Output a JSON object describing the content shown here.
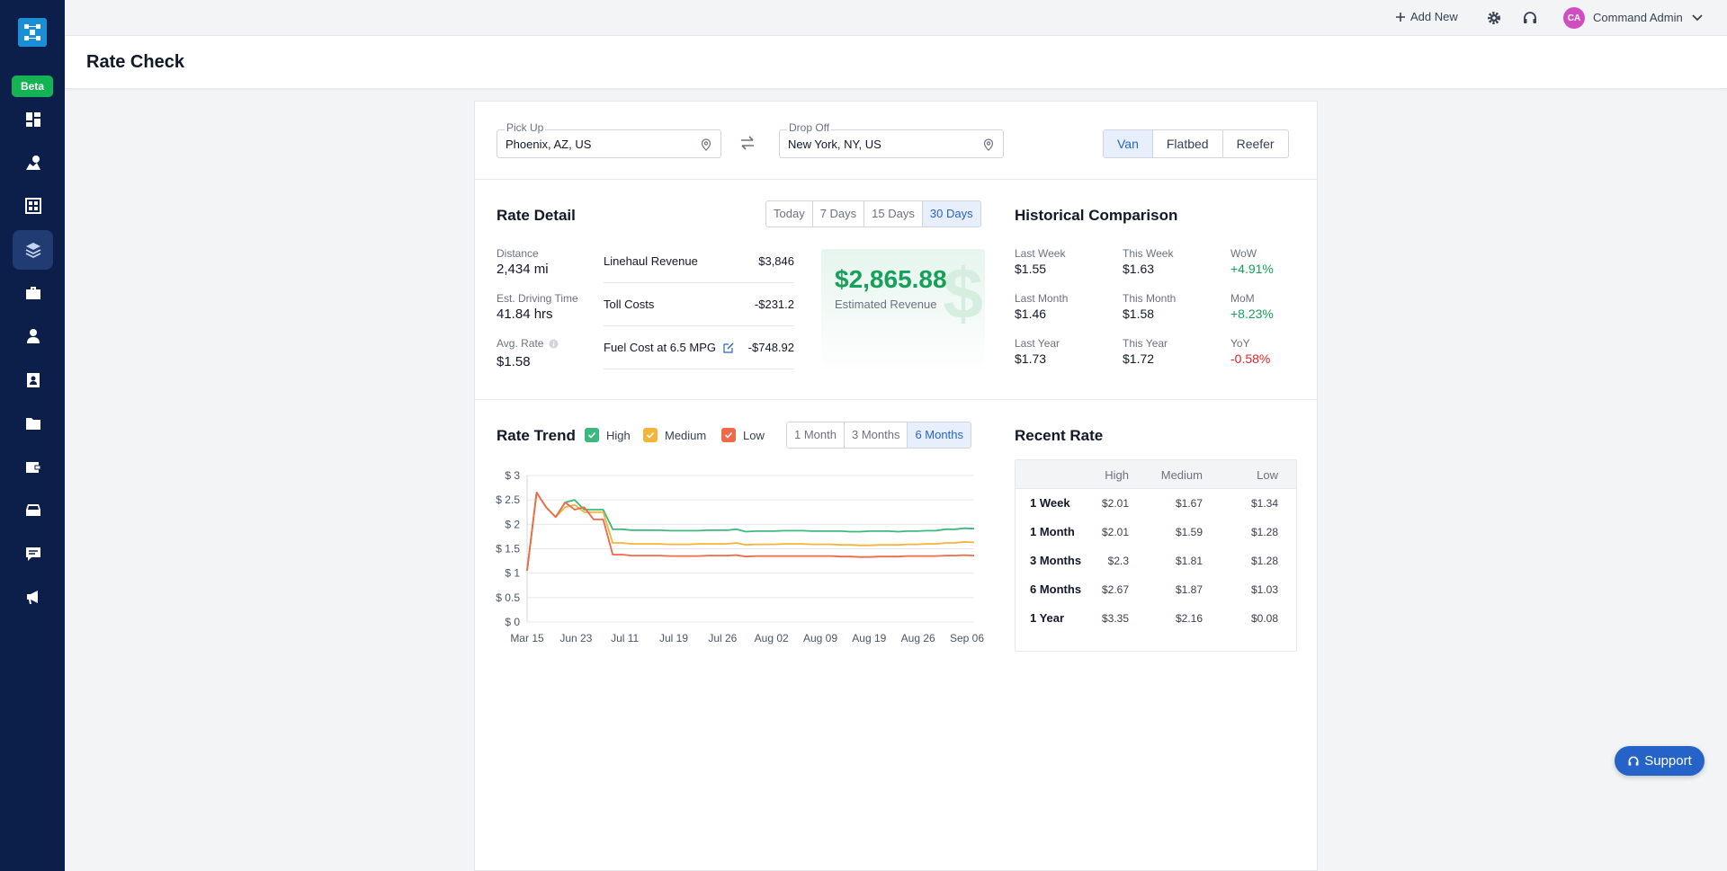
{
  "topbar": {
    "add_new": "Add New",
    "user_initials": "CA",
    "user_name": "Command Admin"
  },
  "sidebar": {
    "beta": "Beta",
    "items": [
      "dashboard-icon",
      "map-route-icon",
      "network-icon",
      "layers-icon",
      "briefcase-icon",
      "driver-icon",
      "contact-card-icon",
      "folder-icon",
      "wallet-icon",
      "truck-icon",
      "message-icon",
      "megaphone-icon"
    ],
    "active_index": 3
  },
  "page_title": "Rate Check",
  "route": {
    "pickup_label": "Pick Up",
    "pickup_value": "Phoenix, AZ, US",
    "dropoff_label": "Drop Off",
    "dropoff_value": "New York, NY, US",
    "equipment": [
      "Van",
      "Flatbed",
      "Reefer"
    ],
    "equipment_selected": "Van"
  },
  "rate_detail": {
    "title": "Rate Detail",
    "periods": [
      "Today",
      "7 Days",
      "15 Days",
      "30 Days"
    ],
    "period_selected": "30 Days",
    "distance_label": "Distance",
    "distance_value": "2,434 mi",
    "driving_label": "Est. Driving Time",
    "driving_value": "41.84 hrs",
    "avg_label": "Avg. Rate",
    "avg_value": "$1.58",
    "costs": [
      {
        "name": "Linehaul Revenue",
        "amount": "$3,846"
      },
      {
        "name": "Toll Costs",
        "amount": "-$231.2"
      },
      {
        "name": "Fuel Cost at 6.5 MPG",
        "amount": "-$748.92"
      }
    ],
    "revenue_value": "$2,865.88",
    "revenue_label": "Estimated Revenue",
    "revenue_symbol": "$"
  },
  "historical": {
    "title": "Historical Comparison",
    "rows": [
      {
        "prev_label": "Last Week",
        "prev_value": "$1.55",
        "cur_label": "This Week",
        "cur_value": "$1.63",
        "chg_label": "WoW",
        "chg_value": "+4.91%",
        "positive": true
      },
      {
        "prev_label": "Last Month",
        "prev_value": "$1.46",
        "cur_label": "This Month",
        "cur_value": "$1.58",
        "chg_label": "MoM",
        "chg_value": "+8.23%",
        "positive": true
      },
      {
        "prev_label": "Last Year",
        "prev_value": "$1.73",
        "cur_label": "This Year",
        "cur_value": "$1.72",
        "chg_label": "YoY",
        "chg_value": "-0.58%",
        "positive": false
      }
    ]
  },
  "rate_trend": {
    "title": "Rate Trend",
    "legend": [
      {
        "name": "High",
        "color": "#3bb87f"
      },
      {
        "name": "Medium",
        "color": "#f2b43a"
      },
      {
        "name": "Low",
        "color": "#ee6a48"
      }
    ],
    "ranges": [
      "1 Month",
      "3 Months",
      "6 Months"
    ],
    "range_selected": "6 Months"
  },
  "chart_data": {
    "type": "line",
    "title": "",
    "xlabel": "",
    "ylabel": "",
    "ylim": [
      0,
      3
    ],
    "yticks": [
      "$ 0",
      "$ 0.5",
      "$ 1",
      "$ 1.5",
      "$ 2",
      "$ 2.5",
      "$ 3"
    ],
    "x_ticks": [
      "Mar 15",
      "Jun 23",
      "Jul 11",
      "Jul 19",
      "Jul 26",
      "Aug 02",
      "Aug 09",
      "Aug 19",
      "Aug 26",
      "Sep 06"
    ],
    "grid": true,
    "series": [
      {
        "name": "High",
        "color": "#3bb87f",
        "values": [
          1.05,
          2.65,
          2.35,
          2.15,
          2.45,
          2.5,
          2.3,
          2.3,
          2.3,
          1.9,
          1.9,
          1.88,
          1.88,
          1.88,
          1.88,
          1.87,
          1.87,
          1.87,
          1.87,
          1.88,
          1.88,
          1.88,
          1.9,
          1.85,
          1.86,
          1.86,
          1.86,
          1.87,
          1.87,
          1.87,
          1.86,
          1.86,
          1.86,
          1.86,
          1.85,
          1.85,
          1.86,
          1.86,
          1.86,
          1.85,
          1.86,
          1.86,
          1.87,
          1.87,
          1.9,
          1.9,
          1.92,
          1.91
        ]
      },
      {
        "name": "Medium",
        "color": "#f2b43a",
        "values": [
          1.05,
          2.65,
          2.35,
          2.15,
          2.35,
          2.4,
          2.25,
          2.25,
          2.25,
          1.62,
          1.62,
          1.6,
          1.6,
          1.6,
          1.6,
          1.59,
          1.59,
          1.59,
          1.6,
          1.6,
          1.6,
          1.6,
          1.62,
          1.58,
          1.59,
          1.59,
          1.59,
          1.6,
          1.6,
          1.6,
          1.59,
          1.59,
          1.59,
          1.58,
          1.58,
          1.57,
          1.57,
          1.58,
          1.58,
          1.58,
          1.59,
          1.59,
          1.6,
          1.6,
          1.62,
          1.62,
          1.64,
          1.63
        ]
      },
      {
        "name": "Low",
        "color": "#ee6a48",
        "values": [
          1.05,
          2.65,
          2.35,
          2.15,
          2.45,
          2.3,
          2.35,
          2.1,
          2.1,
          1.38,
          1.38,
          1.36,
          1.36,
          1.36,
          1.36,
          1.35,
          1.35,
          1.35,
          1.35,
          1.36,
          1.36,
          1.36,
          1.37,
          1.34,
          1.35,
          1.35,
          1.35,
          1.35,
          1.35,
          1.35,
          1.35,
          1.35,
          1.35,
          1.34,
          1.34,
          1.33,
          1.33,
          1.34,
          1.34,
          1.34,
          1.35,
          1.35,
          1.35,
          1.35,
          1.36,
          1.36,
          1.37,
          1.36
        ]
      }
    ]
  },
  "recent_rate": {
    "title": "Recent Rate",
    "columns": [
      "High",
      "Medium",
      "Low"
    ],
    "rows": [
      {
        "label": "1 Week",
        "values": [
          "$2.01",
          "$1.67",
          "$1.34"
        ]
      },
      {
        "label": "1 Month",
        "values": [
          "$2.01",
          "$1.59",
          "$1.28"
        ]
      },
      {
        "label": "3 Months",
        "values": [
          "$2.3",
          "$1.81",
          "$1.28"
        ]
      },
      {
        "label": "6 Months",
        "values": [
          "$2.67",
          "$1.87",
          "$1.03"
        ]
      },
      {
        "label": "1 Year",
        "values": [
          "$3.35",
          "$2.16",
          "$0.08"
        ]
      }
    ]
  },
  "support": "Support"
}
